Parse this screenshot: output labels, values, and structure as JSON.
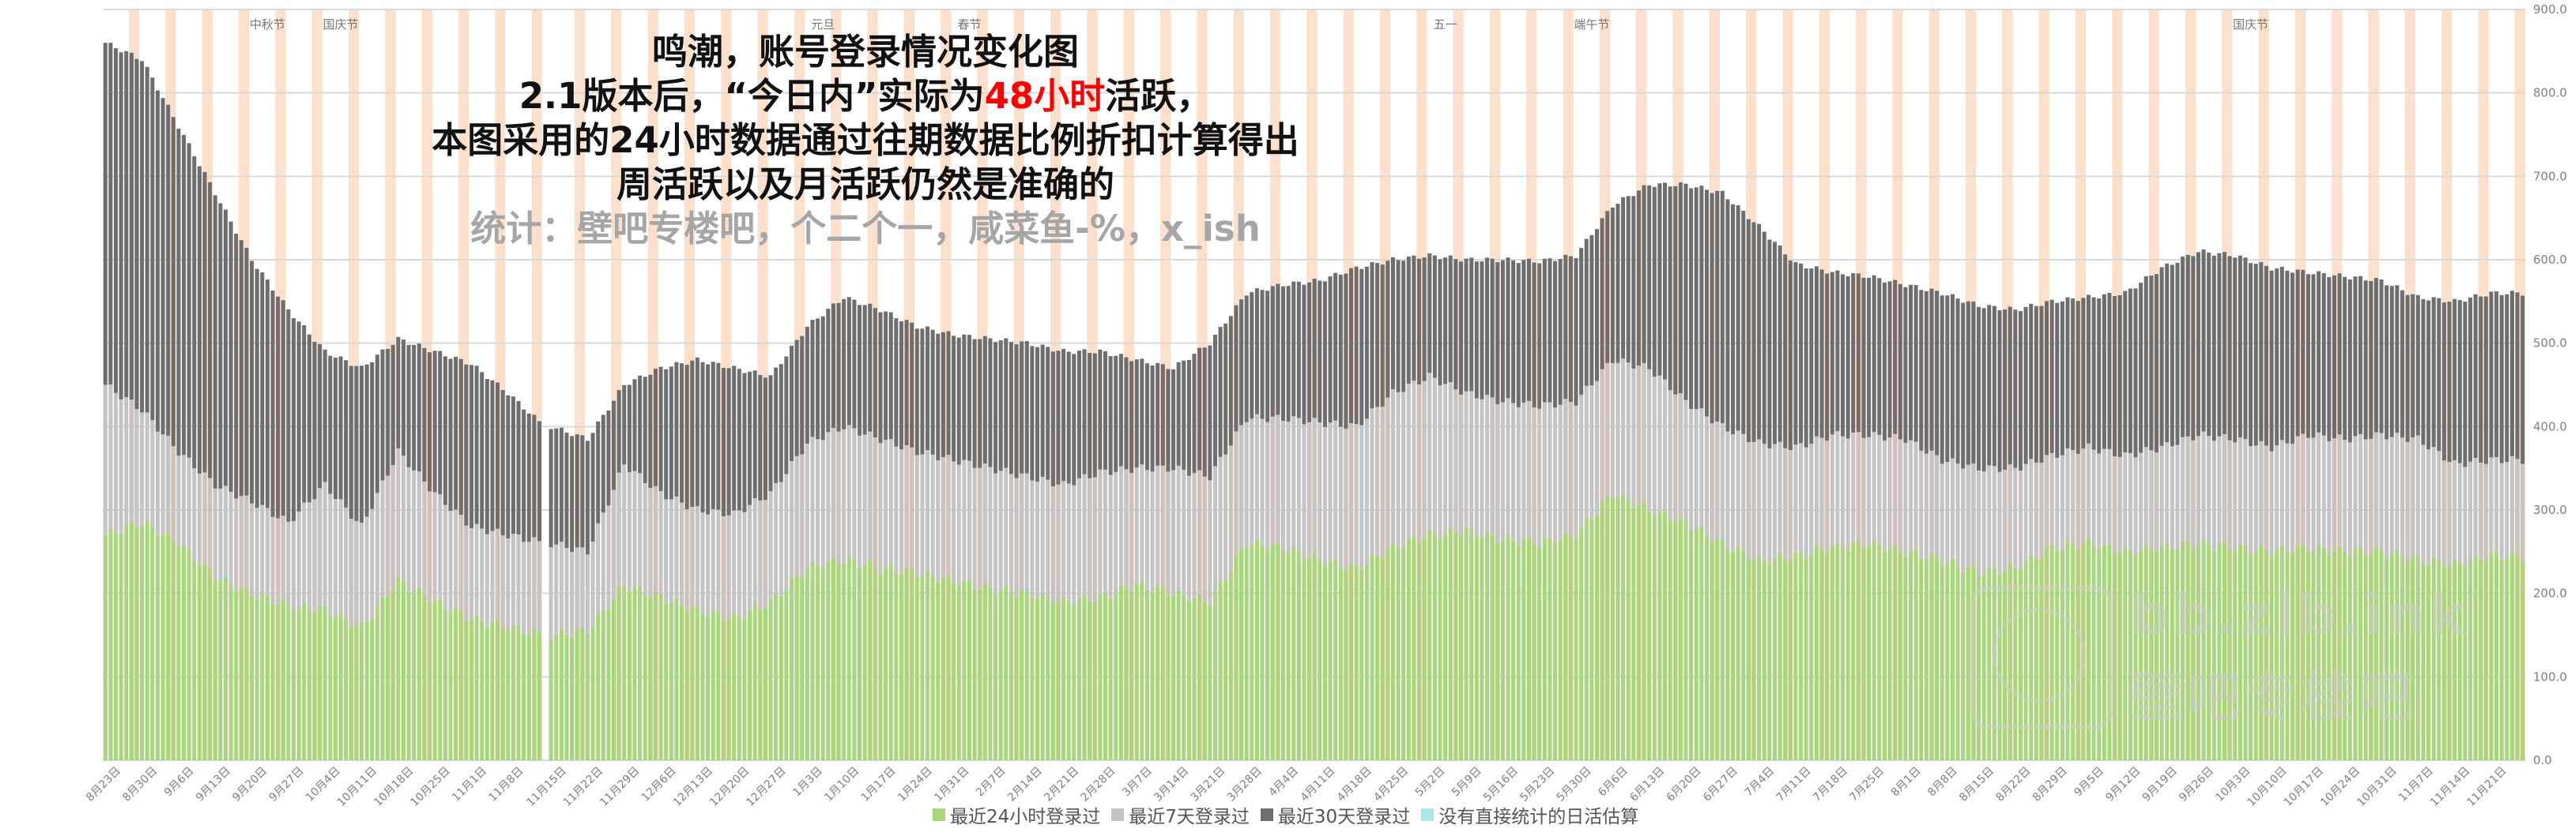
{
  "title": {
    "line1": "鸣潮，账号登录情况变化图",
    "line2_pre": "2.1版本后，“今日内”实际为",
    "line2_red": "48小时",
    "line2_post": "活跃，",
    "line3": "本图采用的24小时数据通过往期数据比例折扣计算得出",
    "line4": "周活跃以及月活跃仍然是准确的",
    "line5": "统计：壁吧专楼吧，个二个一，咸菜鱼-%，x_ish"
  },
  "watermark": {
    "line1": "bb.zlb.ink",
    "line2": "壁吧专楼吧"
  },
  "colors": {
    "login24h": "#a8d67a",
    "login7d": "#c4c4c4",
    "login30d": "#6e6e6e",
    "estimate": "#a8e8e0",
    "weekend": "#fde0cc",
    "grid": "#d9d9d9",
    "axis_text": "#7f7f7f"
  },
  "chart_data": {
    "type": "bar",
    "stacked": true,
    "title": "鸣潮，账号登录情况变化图",
    "y_axis_side": "right",
    "ylim": [
      0,
      900
    ],
    "ytick_labels": [
      "0.0",
      "100.0",
      "200.0",
      "300.0",
      "400.0",
      "500.0",
      "600.0",
      "700.0",
      "800.0",
      "900.0"
    ],
    "legend_position": "bottom",
    "x_tick_labels": [
      "8月23日",
      "8月30日",
      "9月6日",
      "9月13日",
      "9月20日",
      "9月27日",
      "10月4日",
      "10月11日",
      "10月18日",
      "10月25日",
      "11月1日",
      "11月8日",
      "11月15日",
      "11月22日",
      "11月29日",
      "12月6日",
      "12月13日",
      "12月20日",
      "12月27日",
      "1月3日",
      "1月10日",
      "1月17日",
      "1月24日",
      "1月31日",
      "2月7日",
      "2月14日",
      "2月21日",
      "2月28日",
      "3月7日",
      "3月14日",
      "3月21日",
      "3月28日",
      "4月4日",
      "4月11日",
      "4月18日",
      "4月25日",
      "5月2日",
      "5月9日",
      "5月16日",
      "5月23日",
      "5月30日",
      "6月6日",
      "6月13日",
      "6月20日",
      "6月27日",
      "7月4日",
      "7月11日",
      "7月18日",
      "7月25日",
      "8月1日",
      "8月8日",
      "8月15日",
      "8月22日",
      "8月29日",
      "9月5日",
      "9月12日",
      "9月19日",
      "9月26日",
      "10月3日",
      "10月10日",
      "10月17日",
      "10月24日",
      "10月31日",
      "11月7日",
      "11月14日",
      "11月21日"
    ],
    "holiday_labels": [
      {
        "label": "中秋节",
        "week": 4
      },
      {
        "label": "国庆节",
        "week": 6
      },
      {
        "label": "元旦",
        "week": 19
      },
      {
        "label": "春节",
        "week": 23
      },
      {
        "label": "五一",
        "week": 36
      },
      {
        "label": "端午节",
        "week": 40
      },
      {
        "label": "国庆节",
        "week": 58
      }
    ],
    "gap_after_week": 11,
    "weeks_per_label": 1,
    "series": [
      {
        "name": "最近24小时登录过",
        "weekly_values": [
          270,
          285,
          260,
          220,
          200,
          185,
          180,
          160,
          215,
          190,
          170,
          160,
          150,
          155,
          210,
          195,
          180,
          170,
          190,
          230,
          240,
          230,
          225,
          215,
          205,
          200,
          190,
          195,
          210,
          200,
          190,
          260,
          255,
          240,
          230,
          255,
          270,
          275,
          265,
          260,
          270,
          320,
          300,
          285,
          260,
          240,
          245,
          255,
          260,
          250,
          240,
          225,
          230,
          255,
          260,
          250,
          255,
          260,
          255,
          250,
          255,
          250,
          250,
          240,
          235,
          245
        ]
      },
      {
        "name": "最近7天登录过",
        "weekly_values": [
          450,
          420,
          370,
          330,
          310,
          285,
          330,
          280,
          370,
          320,
          280,
          270,
          260,
          250,
          355,
          320,
          300,
          295,
          320,
          380,
          400,
          385,
          370,
          360,
          350,
          340,
          330,
          345,
          350,
          350,
          340,
          410,
          410,
          405,
          400,
          440,
          460,
          440,
          430,
          425,
          430,
          480,
          470,
          430,
          400,
          380,
          375,
          390,
          390,
          385,
          360,
          350,
          350,
          365,
          375,
          365,
          375,
          390,
          385,
          375,
          390,
          385,
          390,
          385,
          355,
          360
        ]
      },
      {
        "name": "最近30天登录过",
        "weekly_values": [
          860,
          840,
          760,
          680,
          600,
          540,
          490,
          470,
          505,
          490,
          475,
          440,
          400,
          385,
          450,
          470,
          480,
          470,
          460,
          520,
          555,
          540,
          520,
          510,
          505,
          500,
          490,
          490,
          480,
          470,
          500,
          560,
          570,
          575,
          590,
          600,
          605,
          600,
          600,
          598,
          605,
          665,
          690,
          690,
          680,
          640,
          595,
          585,
          580,
          570,
          560,
          545,
          540,
          550,
          555,
          560,
          590,
          610,
          605,
          590,
          585,
          580,
          575,
          555,
          550,
          560
        ]
      },
      {
        "name": "没有直接统计的日活估算",
        "weekly_values": []
      }
    ]
  }
}
